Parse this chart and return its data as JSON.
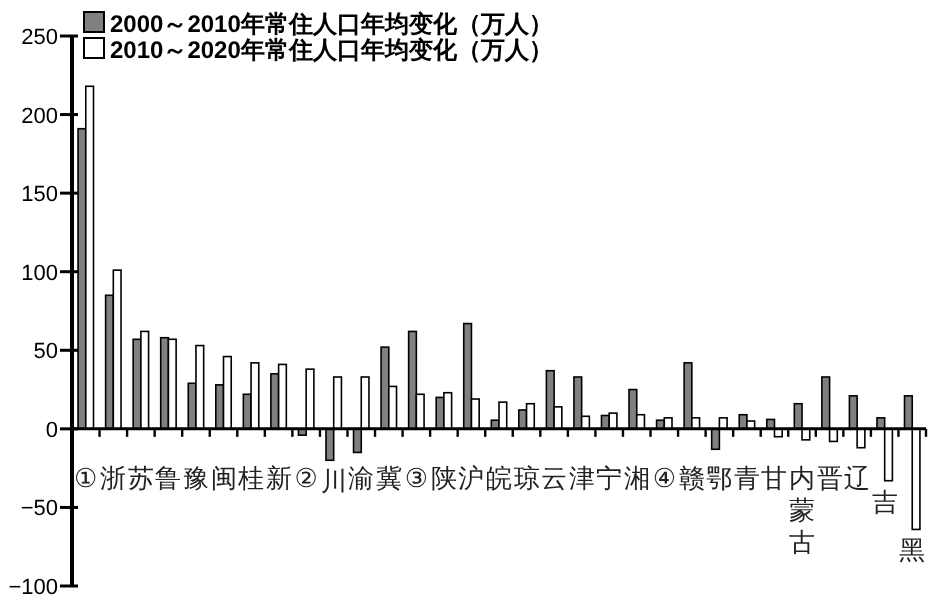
{
  "chart_data": {
    "type": "bar",
    "categories": [
      "①",
      "浙",
      "苏",
      "鲁",
      "豫",
      "闽",
      "桂",
      "新",
      "②",
      "川",
      "渝",
      "冀",
      "③",
      "陕",
      "沪",
      "皖",
      "琼",
      "云",
      "津",
      "宁",
      "湘",
      "④",
      "赣",
      "鄂",
      "青",
      "甘",
      "内蒙古",
      "晋",
      "辽",
      "吉",
      "黑"
    ],
    "series": [
      {
        "name": "2000～2010年常住人口年均变化（万人）",
        "color": "#808080",
        "values": [
          191,
          85,
          57,
          58,
          29,
          28,
          22,
          35,
          -4,
          -20,
          -15,
          52,
          62,
          20,
          67,
          5.5,
          12,
          37,
          33,
          8.5,
          25,
          5.5,
          42,
          -13,
          9,
          6,
          16,
          33,
          21,
          7,
          21
        ]
      },
      {
        "name": "2010～2020年常住人口年均变化（万人）",
        "color": "#ffffff",
        "values": [
          218,
          101,
          62,
          57,
          53,
          46,
          42,
          41,
          38,
          33,
          33,
          27,
          22,
          23,
          19,
          17,
          16,
          14,
          8,
          10,
          9,
          7,
          7,
          7,
          5,
          -5,
          -7,
          -8,
          -12,
          -33,
          -64
        ]
      }
    ],
    "ylim": [
      -100,
      250
    ],
    "yticks": [
      -100,
      -50,
      0,
      50,
      100,
      150,
      200,
      250
    ],
    "legend": "top left"
  }
}
